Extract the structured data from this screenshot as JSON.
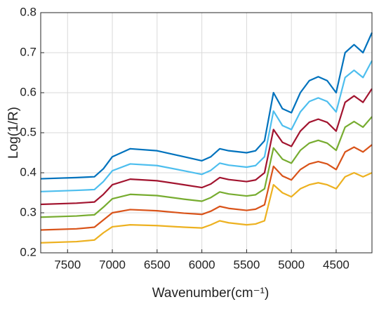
{
  "chart_data": {
    "type": "line",
    "xlabel": "Wavenumber(cm⁻¹)",
    "ylabel": "Log(1/R)",
    "x": [
      7800,
      7400,
      7200,
      7100,
      7000,
      6800,
      6500,
      6200,
      6000,
      5900,
      5800,
      5700,
      5500,
      5400,
      5300,
      5200,
      5100,
      5000,
      4900,
      4800,
      4700,
      4600,
      4500,
      4400,
      4300,
      4200,
      4100
    ],
    "series": [
      {
        "color": "#EDB120",
        "values": [
          0.225,
          0.228,
          0.232,
          0.25,
          0.265,
          0.27,
          0.268,
          0.264,
          0.262,
          0.27,
          0.28,
          0.275,
          0.27,
          0.272,
          0.28,
          0.37,
          0.35,
          0.34,
          0.36,
          0.37,
          0.375,
          0.37,
          0.36,
          0.39,
          0.4,
          0.39,
          0.4
        ]
      },
      {
        "color": "#D95319",
        "values": [
          0.257,
          0.26,
          0.264,
          0.282,
          0.3,
          0.308,
          0.305,
          0.299,
          0.296,
          0.304,
          0.316,
          0.311,
          0.306,
          0.309,
          0.32,
          0.416,
          0.392,
          0.382,
          0.408,
          0.422,
          0.428,
          0.422,
          0.408,
          0.452,
          0.464,
          0.452,
          0.47
        ]
      },
      {
        "color": "#77AC30",
        "values": [
          0.289,
          0.292,
          0.295,
          0.314,
          0.335,
          0.346,
          0.343,
          0.334,
          0.329,
          0.338,
          0.352,
          0.347,
          0.342,
          0.345,
          0.36,
          0.462,
          0.434,
          0.424,
          0.456,
          0.474,
          0.481,
          0.474,
          0.456,
          0.514,
          0.528,
          0.514,
          0.54
        ]
      },
      {
        "color": "#A2142F",
        "values": [
          0.321,
          0.324,
          0.327,
          0.346,
          0.37,
          0.384,
          0.38,
          0.37,
          0.363,
          0.372,
          0.388,
          0.383,
          0.378,
          0.382,
          0.4,
          0.508,
          0.476,
          0.466,
          0.504,
          0.526,
          0.534,
          0.526,
          0.504,
          0.576,
          0.592,
          0.576,
          0.61
        ]
      },
      {
        "color": "#4DBEEE",
        "values": [
          0.353,
          0.356,
          0.358,
          0.378,
          0.405,
          0.422,
          0.418,
          0.405,
          0.396,
          0.406,
          0.424,
          0.419,
          0.414,
          0.418,
          0.44,
          0.554,
          0.518,
          0.508,
          0.552,
          0.578,
          0.587,
          0.578,
          0.552,
          0.638,
          0.656,
          0.638,
          0.68
        ]
      },
      {
        "color": "#0072BD",
        "values": [
          0.385,
          0.388,
          0.39,
          0.41,
          0.44,
          0.46,
          0.455,
          0.44,
          0.43,
          0.44,
          0.46,
          0.455,
          0.45,
          0.455,
          0.48,
          0.6,
          0.56,
          0.55,
          0.6,
          0.63,
          0.64,
          0.63,
          0.6,
          0.7,
          0.72,
          0.7,
          0.75
        ]
      }
    ],
    "xlim": [
      7800,
      4100
    ],
    "xticks": [
      7500,
      7000,
      6500,
      6000,
      5500,
      5000,
      4500
    ],
    "ylim": [
      0.2,
      0.8
    ],
    "yticks": [
      0.2,
      0.3,
      0.4,
      0.5,
      0.6,
      0.7,
      0.8
    ],
    "grid": true
  }
}
